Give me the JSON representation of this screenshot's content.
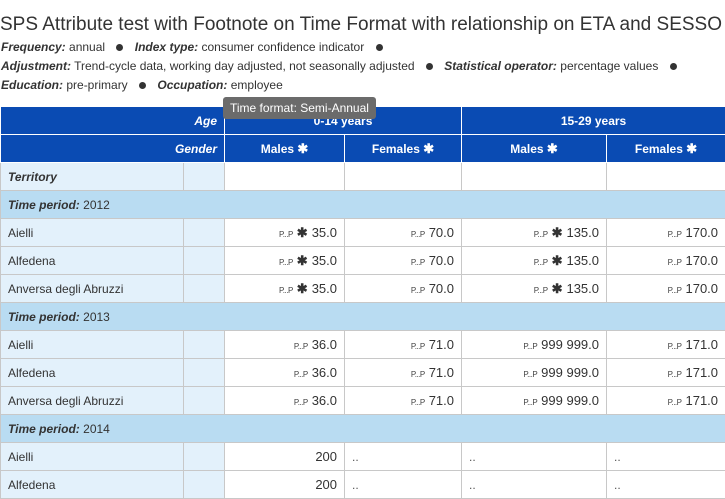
{
  "title": "SPS Attribute test with Footnote on Time Format with relationship on ETA and SESSO",
  "meta": {
    "frequency_label": "Frequency:",
    "frequency_value": "annual",
    "index_label": "Index type:",
    "index_value": "consumer confidence indicator",
    "adjustment_label": "Adjustment:",
    "adjustment_value": "Trend-cycle data, working day adjusted, not seasonally adjusted",
    "stat_label": "Statistical operator:",
    "stat_value": "percentage values",
    "education_label": "Education:",
    "education_value": "pre-primary",
    "occupation_label": "Occupation:",
    "occupation_value": "employee"
  },
  "tooltip": "Time format: Semi-Annual",
  "header": {
    "age_label": "Age",
    "gender_label": "Gender",
    "age_group_1": "0-14 years",
    "age_group_2": "15-29 years",
    "males": "Males",
    "females": "Females",
    "territory": "Territory",
    "star": "✱"
  },
  "flags": {
    "pp": "P...P",
    "star": "✱"
  },
  "periods": [
    {
      "label": "Time period:",
      "value": "2012",
      "rows": [
        {
          "name": "Aielli",
          "v": [
            "35.0",
            "70.0",
            "135.0",
            "170.0"
          ]
        },
        {
          "name": "Alfedena",
          "v": [
            "35.0",
            "70.0",
            "135.0",
            "170.0"
          ]
        },
        {
          "name": "Anversa degli Abruzzi",
          "v": [
            "35.0",
            "70.0",
            "135.0",
            "170.0"
          ]
        }
      ]
    },
    {
      "label": "Time period:",
      "value": "2013",
      "rows": [
        {
          "name": "Aielli",
          "v": [
            "36.0",
            "71.0",
            "999 999.0",
            "171.0"
          ]
        },
        {
          "name": "Alfedena",
          "v": [
            "36.0",
            "71.0",
            "999 999.0",
            "171.0"
          ]
        },
        {
          "name": "Anversa degli Abruzzi",
          "v": [
            "36.0",
            "71.0",
            "999 999.0",
            "171.0"
          ]
        }
      ]
    },
    {
      "label": "Time period:",
      "value": "2014",
      "rows": [
        {
          "name": "Aielli",
          "v": [
            "200",
            "..",
            "..",
            ".."
          ]
        },
        {
          "name": "Alfedena",
          "v": [
            "200",
            "..",
            "..",
            ".."
          ]
        }
      ]
    }
  ]
}
